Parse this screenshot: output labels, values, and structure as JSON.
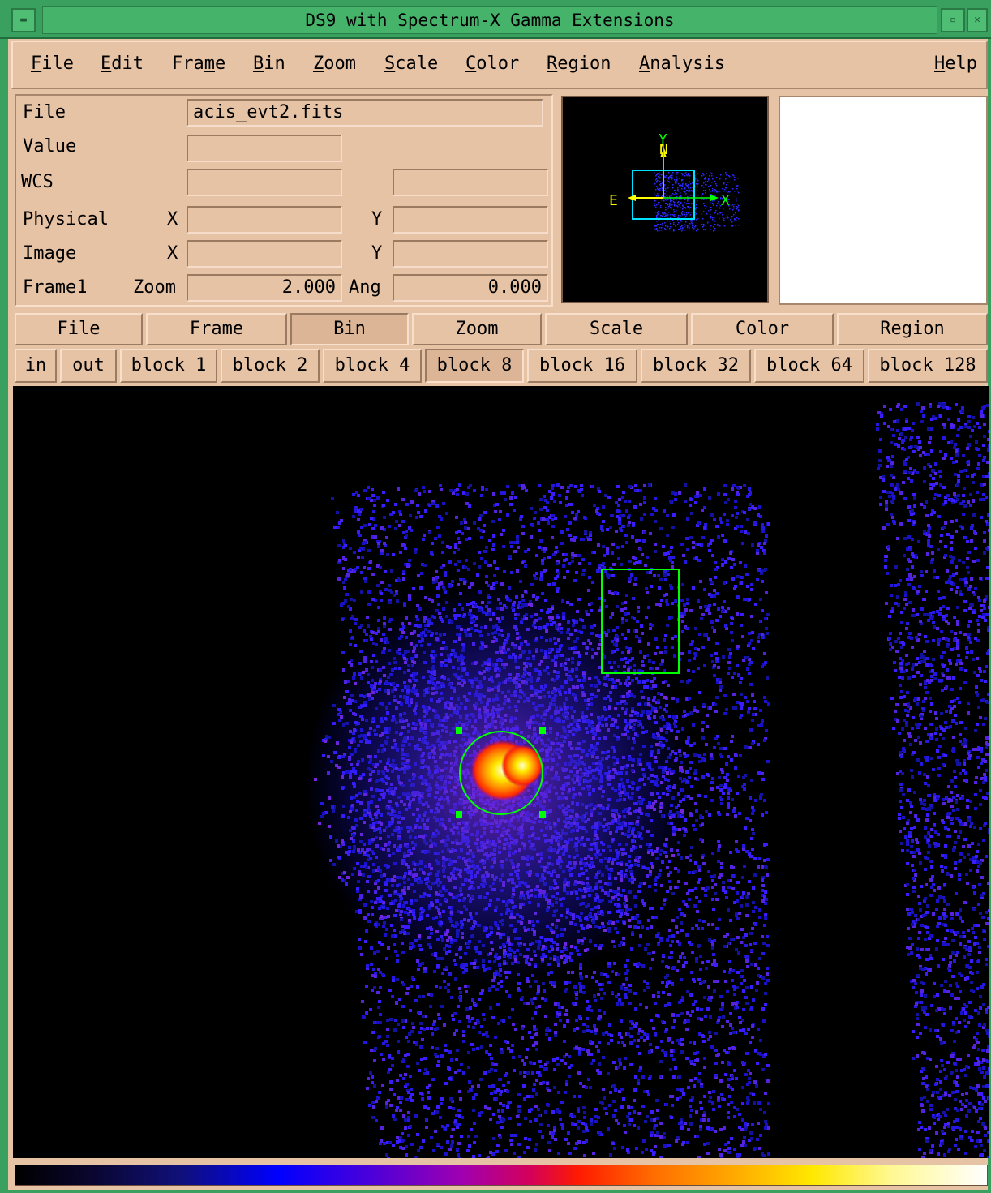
{
  "window": {
    "title": "DS9 with Spectrum-X Gamma Extensions",
    "title_menu_icon": "window-menu-icon",
    "minimize_icon": "minimize-icon",
    "close_icon": "close-icon"
  },
  "menubar": {
    "items": [
      "File",
      "Edit",
      "Frame",
      "Bin",
      "Zoom",
      "Scale",
      "Color",
      "Region",
      "Analysis"
    ],
    "help": "Help"
  },
  "info": {
    "file_label": "File",
    "file_value": "acis_evt2.fits",
    "value_label": "Value",
    "value_value": "",
    "wcs_label": "WCS",
    "wcs_value1": "",
    "wcs_value2": "",
    "physical_label": "Physical",
    "physical_x_label": "X",
    "physical_x_value": "",
    "physical_y_label": "Y",
    "physical_y_value": "",
    "image_label": "Image",
    "image_x_label": "X",
    "image_x_value": "",
    "image_y_label": "Y",
    "image_y_value": "",
    "frame_label": "Frame1",
    "zoom_label": "Zoom",
    "zoom_value": "2.000",
    "ang_label": "Ang",
    "ang_value": "0.000"
  },
  "panner": {
    "north_label": "N",
    "east_label": "E",
    "x_axis_label": "X",
    "y_axis_label": "Y",
    "compass_color": "#ffff00",
    "axes_color": "#00ff00",
    "view_box_color": "#00e0ff"
  },
  "buttonbar": {
    "main": [
      "File",
      "Frame",
      "Bin",
      "Zoom",
      "Scale",
      "Color",
      "Region"
    ],
    "main_active": "Bin",
    "bin": [
      "in",
      "out",
      "block 1",
      "block 2",
      "block 4",
      "block 8",
      "block 16",
      "block 32",
      "block 64",
      "block 128"
    ],
    "bin_active": "block 8"
  },
  "regions": {
    "color": "#00ff00",
    "circle_selected": true,
    "box_selected": false
  },
  "colorbar": {
    "colormap": "heat-like",
    "colors": [
      "#000000",
      "#10107a",
      "#0000ff",
      "#a000b0",
      "#ff1b00",
      "#ff7000",
      "#ffe800",
      "#ffffff"
    ]
  }
}
